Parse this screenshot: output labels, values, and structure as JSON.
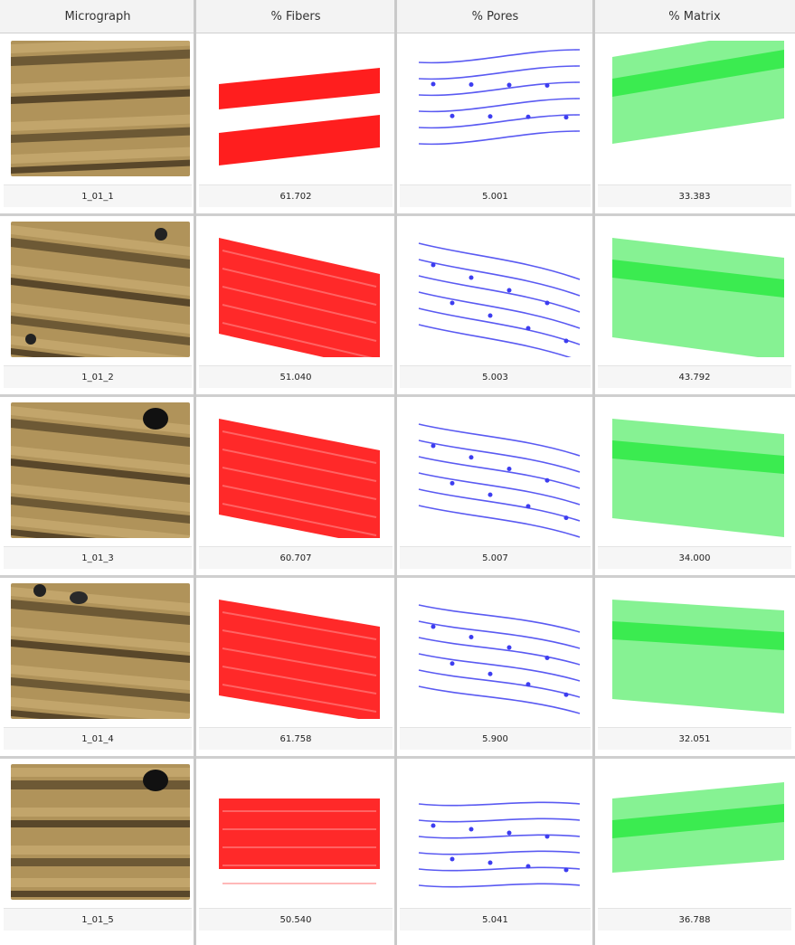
{
  "headers": [
    "Micrograph",
    "% Fibers",
    "% Pores",
    "% Matrix"
  ],
  "colors": {
    "fibers": "#ff1e1e",
    "pores": "#3d3df0",
    "matrix": "#22e83a",
    "micrograph_base": "#b0935a",
    "micrograph_dark": "#4a3a22"
  },
  "rows": [
    {
      "sample": "1_01_1",
      "fibers": "61.702",
      "pores": "5.001",
      "matrix": "33.383"
    },
    {
      "sample": "1_01_2",
      "fibers": "51.040",
      "pores": "5.003",
      "matrix": "43.792"
    },
    {
      "sample": "1_01_3",
      "fibers": "60.707",
      "pores": "5.007",
      "matrix": "34.000"
    },
    {
      "sample": "1_01_4",
      "fibers": "61.758",
      "pores": "5.900",
      "matrix": "32.051"
    },
    {
      "sample": "1_01_5",
      "fibers": "50.540",
      "pores": "5.041",
      "matrix": "36.788"
    }
  ]
}
